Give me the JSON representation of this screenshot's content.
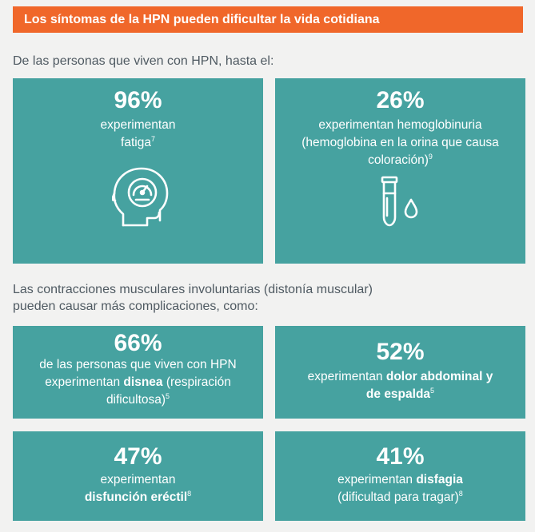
{
  "banner": {
    "title": "Los síntomas de la HPN pueden dificultar la vida cotidiana"
  },
  "intro1": "De las personas que viven con HPN, hasta el:",
  "intro2": {
    "line1": "Las contracciones musculares involuntarias (distonía muscular)",
    "line2": "pueden causar más complicaciones, como:"
  },
  "cards": [
    {
      "percent": "96%",
      "line1": "experimentan",
      "line2": "fatiga",
      "ref": "7",
      "icon": "head-gauge-icon"
    },
    {
      "percent": "26%",
      "line1": "experimentan hemoglobinuria",
      "line2": "(hemoglobina en la orina que causa",
      "line3": "coloración)",
      "ref": "9",
      "icon": "test-tube-droplet-icon"
    },
    {
      "percent": "66%",
      "line1": "de las personas que viven con HPN",
      "line2_pre": "experimentan ",
      "line2_bold": "disnea",
      "line2_post": " (respiración",
      "line3": "dificultosa)",
      "ref": "5"
    },
    {
      "percent": "52%",
      "line1_pre": "experimentan ",
      "line1_bold": "dolor abdominal y",
      "line2_bold": "de espalda",
      "ref": "5"
    },
    {
      "percent": "47%",
      "line1": "experimentan",
      "line2_bold": "disfunción eréctil",
      "ref": "8"
    },
    {
      "percent": "41%",
      "line1_pre": "experimentan ",
      "line1_bold": "disfagia",
      "line2": "(dificultad para tragar)",
      "ref": "8"
    }
  ],
  "colors": {
    "banner": "#f0672a",
    "card": "#46a2a0",
    "text": "#4f5a62"
  }
}
